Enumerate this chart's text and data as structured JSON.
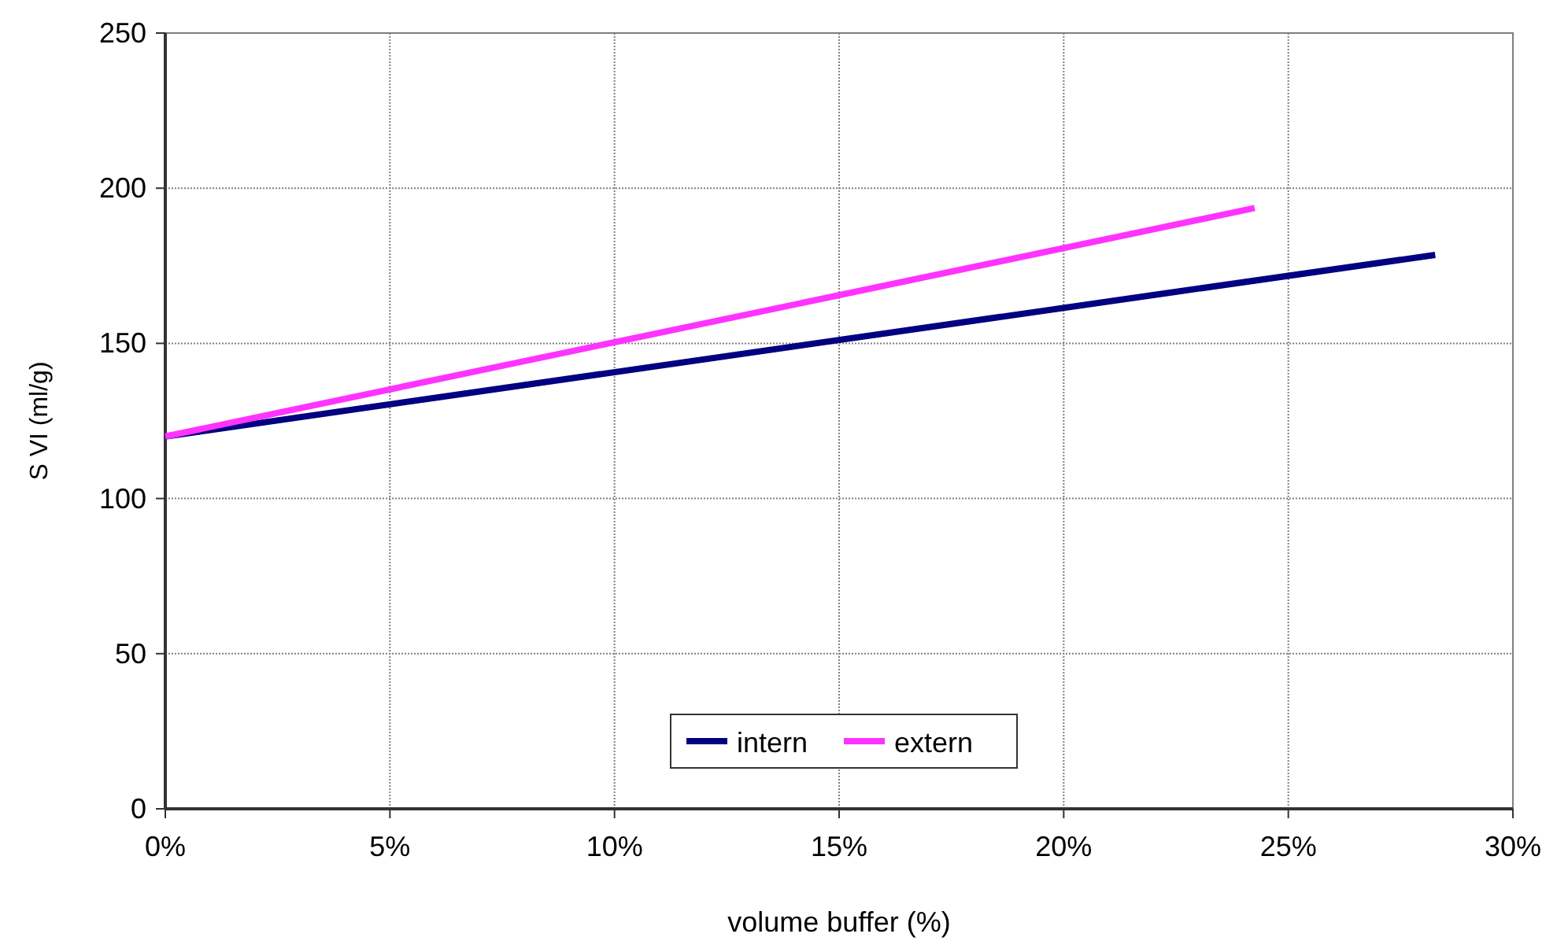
{
  "chart_data": {
    "type": "line",
    "xlabel": "volume buffer (%)",
    "ylabel": "S VI (ml/g)",
    "series": [
      {
        "name": "intern",
        "color": "#000080",
        "x": [
          0,
          22.3,
          28.27
        ],
        "values": [
          120,
          166.2,
          178.5
        ]
      },
      {
        "name": "extern",
        "color": "#ff33ff",
        "x": [
          0,
          24.25
        ],
        "values": [
          120,
          193.6
        ]
      }
    ],
    "xlim": [
      0,
      30
    ],
    "xticks": [
      {
        "value": 0,
        "label": "0%"
      },
      {
        "value": 5,
        "label": "5%"
      },
      {
        "value": 10,
        "label": "10%"
      },
      {
        "value": 15,
        "label": "15%"
      },
      {
        "value": 20,
        "label": "20%"
      },
      {
        "value": 25,
        "label": "25%"
      },
      {
        "value": 30,
        "label": "30%"
      }
    ],
    "ylim": [
      0,
      250
    ],
    "yticks": [
      0,
      50,
      100,
      150,
      200,
      250
    ],
    "grid": true,
    "legend": "bottom",
    "marker": "none",
    "line_style": "solid"
  }
}
